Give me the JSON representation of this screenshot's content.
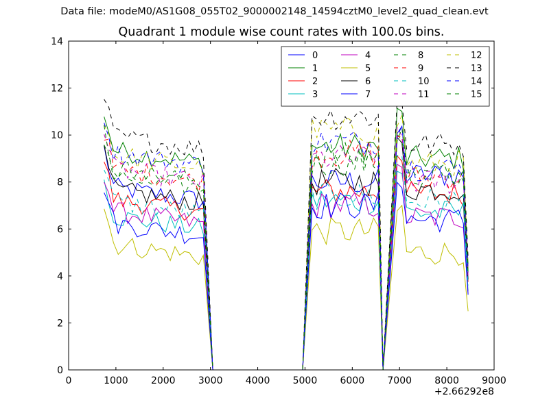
{
  "figure": {
    "suptitle": "Data file: modeM0/AS1G08_055T02_9000002148_14594cztM0_level2_quad_clean.evt",
    "title": "Quadrant 1 module wise count rates with 100.0s bins.",
    "x_offset_label": "+2.66292e8"
  },
  "chart_data": {
    "type": "line",
    "title": "Quadrant 1 module wise count rates with 100.0s bins.",
    "xlabel": "",
    "ylabel": "",
    "x_offset": "+2.66292e8",
    "xlim": [
      0,
      9000
    ],
    "ylim": [
      0,
      14
    ],
    "xticks": [
      0,
      1000,
      2000,
      3000,
      4000,
      5000,
      6000,
      7000,
      8000,
      9000
    ],
    "yticks": [
      0,
      2,
      4,
      6,
      8,
      10,
      12,
      14
    ],
    "grid": false,
    "legend": {
      "placement": "top-right",
      "columns": 4
    },
    "segments": [
      {
        "start": 750,
        "end": 2850,
        "step": 100
      },
      {
        "start": 5150,
        "end": 6550,
        "step": 100
      },
      {
        "start": 6950,
        "end": 8450,
        "step": 100
      }
    ],
    "gap_x": [
      3050,
      4000,
      4950,
      6650
    ],
    "series": [
      {
        "name": "0",
        "color": "#0000ff",
        "dash": "solid",
        "base": [
          7.8,
          8.0,
          8.1,
          8.3
        ]
      },
      {
        "name": "1",
        "color": "#008000",
        "dash": "solid",
        "base": [
          9.4,
          9.5,
          9.8,
          9.0
        ]
      },
      {
        "name": "2",
        "color": "#ff0000",
        "dash": "solid",
        "base": [
          7.3,
          7.6,
          7.0,
          7.5
        ]
      },
      {
        "name": "3",
        "color": "#00bfbf",
        "dash": "solid",
        "base": [
          6.6,
          7.2,
          7.0,
          6.7
        ]
      },
      {
        "name": "4",
        "color": "#bf00bf",
        "dash": "solid",
        "base": [
          6.8,
          7.0,
          7.2,
          6.5
        ]
      },
      {
        "name": "5",
        "color": "#bfbf00",
        "dash": "solid",
        "base": [
          5.4,
          5.9,
          6.0,
          5.0
        ]
      },
      {
        "name": "6",
        "color": "#000000",
        "dash": "solid",
        "base": [
          7.7,
          8.0,
          8.4,
          7.7
        ]
      },
      {
        "name": "7",
        "color": "#0000ff",
        "dash": "solid",
        "base": [
          6.3,
          7.0,
          7.0,
          6.4
        ]
      },
      {
        "name": "8",
        "color": "#008000",
        "dash": "dashed",
        "base": [
          8.3,
          8.8,
          9.0,
          8.3
        ]
      },
      {
        "name": "9",
        "color": "#ff0000",
        "dash": "dashed",
        "base": [
          8.6,
          9.2,
          9.1,
          8.2
        ]
      },
      {
        "name": "10",
        "color": "#00bfbf",
        "dash": "dashed",
        "base": [
          7.2,
          7.4,
          7.6,
          7.2
        ]
      },
      {
        "name": "11",
        "color": "#bf00bf",
        "dash": "dashed",
        "base": [
          8.6,
          9.0,
          8.8,
          8.0
        ]
      },
      {
        "name": "12",
        "color": "#bfbf00",
        "dash": "dashed",
        "base": [
          9.2,
          10.2,
          9.5,
          8.8
        ]
      },
      {
        "name": "13",
        "color": "#000000",
        "dash": "dashed",
        "base": [
          10.0,
          10.8,
          9.9,
          9.6
        ]
      },
      {
        "name": "14",
        "color": "#0000ff",
        "dash": "dashed",
        "base": [
          9.3,
          9.7,
          9.3,
          8.6
        ]
      },
      {
        "name": "15",
        "color": "#008000",
        "dash": "dashed",
        "base": [
          8.6,
          9.1,
          8.9,
          8.3
        ]
      }
    ]
  }
}
